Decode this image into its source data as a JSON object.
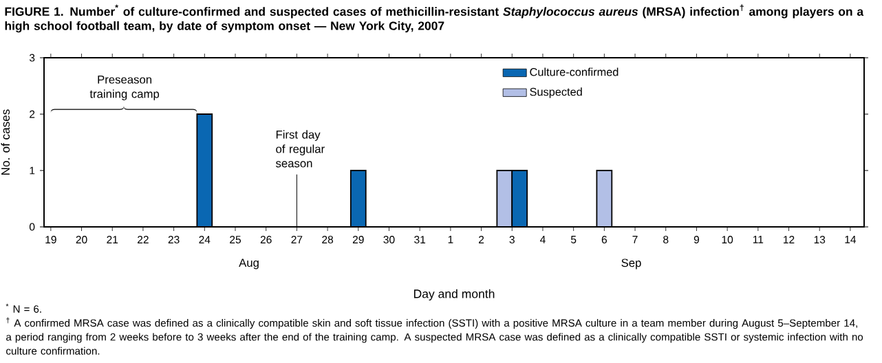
{
  "chart_data": {
    "type": "bar",
    "title": "FIGURE 1. Number$^{*}$ of culture-confirmed and suspected cases of methicillin-resistant *Staphylococcus aureus* (MRSA) infection$^{†}$ among players on a high school football team, by date of symptom onset — New York City, 2007",
    "xlabel": "Day and month",
    "ylabel": "No. of cases",
    "categories": [
      "19",
      "20",
      "21",
      "22",
      "23",
      "24",
      "25",
      "26",
      "27",
      "28",
      "29",
      "30",
      "31",
      "1",
      "2",
      "3",
      "4",
      "5",
      "6",
      "7",
      "8",
      "9",
      "10",
      "11",
      "12",
      "13",
      "14"
    ],
    "series": [
      {
        "name": "Culture-confirmed",
        "color": "#0a67b2",
        "values": [
          0,
          0,
          0,
          0,
          0,
          2,
          0,
          0,
          0,
          0,
          1,
          0,
          0,
          0,
          0,
          1,
          0,
          0,
          0,
          0,
          0,
          0,
          0,
          0,
          0,
          0,
          0
        ]
      },
      {
        "name": "Suspected",
        "color": "#b2bfe6",
        "values": [
          0,
          0,
          0,
          0,
          0,
          0,
          0,
          0,
          0,
          0,
          0,
          0,
          0,
          0,
          0,
          1,
          0,
          0,
          1,
          0,
          0,
          0,
          0,
          0,
          0,
          0,
          0
        ]
      }
    ],
    "ylim": [
      0,
      3
    ],
    "yticks": [
      0,
      1,
      2,
      3
    ],
    "grid": false,
    "legend": "top",
    "ref_lines": [
      {
        "axis": "x",
        "value": "27",
        "label": "First day of regular season"
      }
    ],
    "annotations": [
      "Preseason training camp",
      "Aug",
      "Sep",
      "$^{*}$ N = 6.",
      "$^{†}$ A confirmed MRSA case was defined as a clinically compatible skin and soft tissue infection (SSTI) with a positive MRSA culture in a team member during August 5–September 14, a period ranging from 2 weeks before to 3 weeks after the end of the training camp. A suspected MRSA case was defined as a clinically compatible SSTI or systemic infection with no culture confirmation."
    ]
  }
}
